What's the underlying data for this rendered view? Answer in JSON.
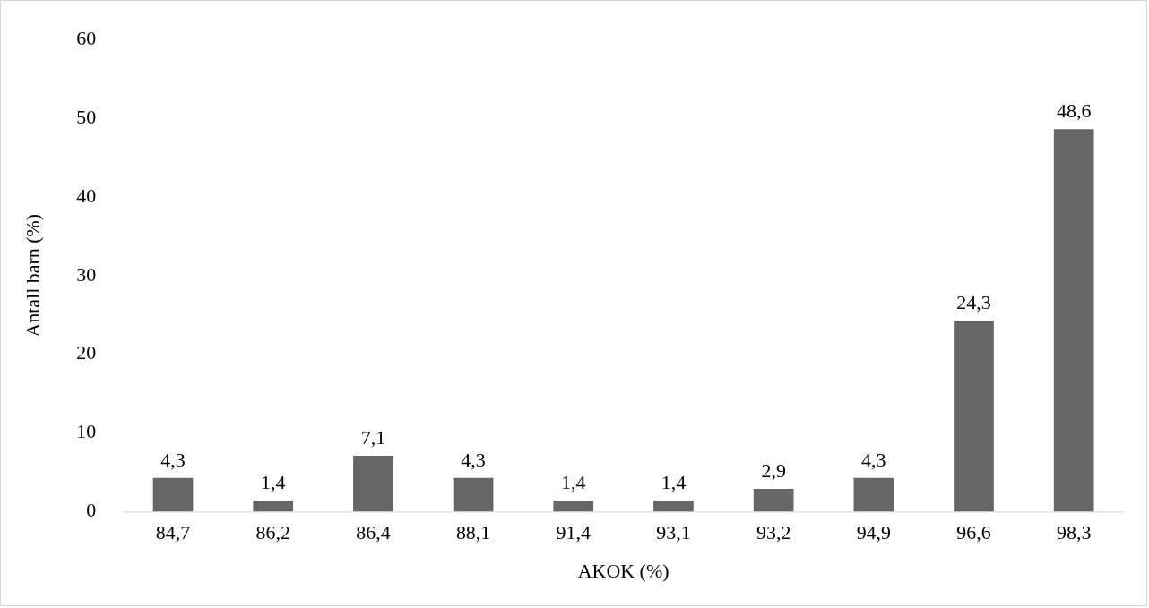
{
  "chart_data": {
    "type": "bar",
    "xlabel": "AKOK (%)",
    "ylabel": "Antall barn (%)",
    "categories": [
      "84,7",
      "86,2",
      "86,4",
      "88,1",
      "91,4",
      "93,1",
      "93,2",
      "94,9",
      "96,6",
      "98,3"
    ],
    "values": [
      4.3,
      1.4,
      7.1,
      4.3,
      1.4,
      1.4,
      2.9,
      4.3,
      24.3,
      48.6
    ],
    "value_labels": [
      "4,3",
      "1,4",
      "7,1",
      "4,3",
      "1,4",
      "1,4",
      "2,9",
      "4,3",
      "24,3",
      "48,6"
    ],
    "color": "#666666",
    "ylim": [
      0,
      60
    ],
    "yticks": [
      0,
      10,
      20,
      30,
      40,
      50,
      60
    ],
    "grid": false,
    "legend": false
  }
}
